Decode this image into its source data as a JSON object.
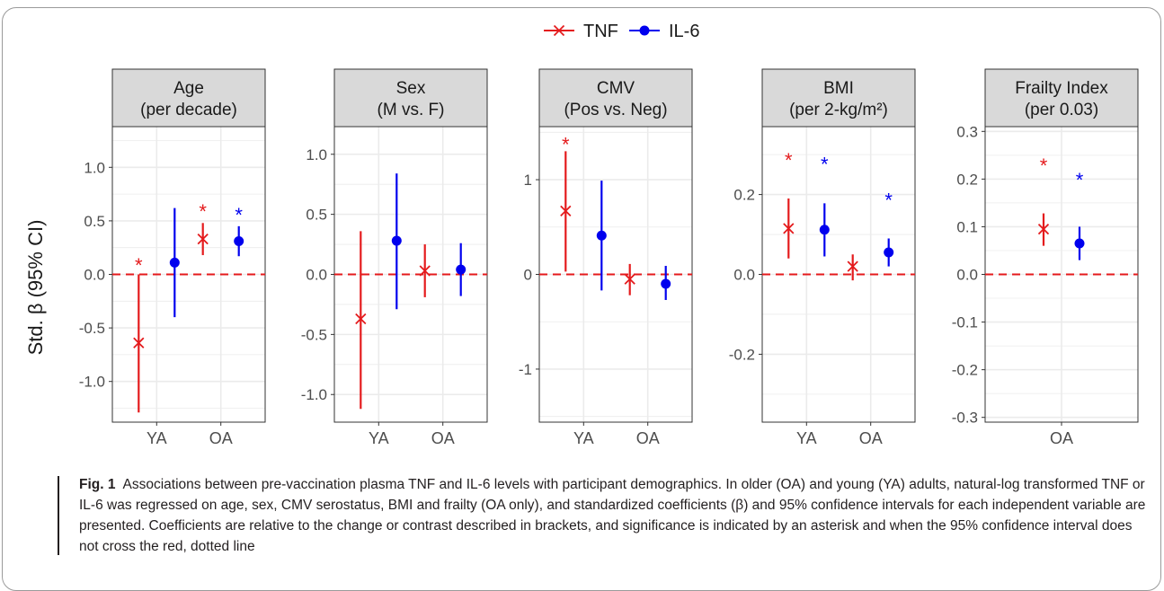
{
  "legend": {
    "items": [
      {
        "name": "TNF",
        "color": "#e41a1c",
        "marker": "x"
      },
      {
        "name": "IL-6",
        "color": "#0000ee",
        "marker": "circle"
      }
    ]
  },
  "y_axis_title": "Std. β (95% CI)",
  "caption": {
    "label": "Fig. 1",
    "text": "Associations between pre-vaccination plasma TNF and IL-6 levels with participant demographics. In older (OA) and young (YA) adults, natural-log transformed TNF or IL-6 was regressed on age, sex, CMV serostatus, BMI and frailty (OA only), and standardized coefficients (β) and 95% confidence intervals for each independent variable are presented. Coefficients are relative to the change or contrast described in brackets, and significance is indicated by an asterisk and when the 95% confidence interval does not cross the red, dotted line"
  },
  "colors": {
    "tnf": "#e41a1c",
    "il6": "#0000ee",
    "strip": "#d9d9d9",
    "grid": "#ebebeb",
    "refline": "#e41a1c"
  },
  "chart_data": [
    {
      "type": "scatter",
      "title": "Age\n(per decade)",
      "categories": [
        "YA",
        "OA"
      ],
      "ylim": [
        -1.38,
        1.38
      ],
      "yticks": [
        -1.0,
        -0.5,
        0.0,
        0.5,
        1.0
      ],
      "ytick_labels": [
        "-1.0",
        "-0.5",
        "0.0",
        "0.5",
        "1.0"
      ],
      "series": [
        {
          "name": "TNF",
          "points": [
            {
              "x": "YA",
              "est": -0.64,
              "lo": -1.29,
              "hi": 0.0,
              "sig": true,
              "star_y": 0.14
            },
            {
              "x": "OA",
              "est": 0.33,
              "lo": 0.18,
              "hi": 0.48,
              "sig": true,
              "star_y": 0.64
            }
          ]
        },
        {
          "name": "IL-6",
          "points": [
            {
              "x": "YA",
              "est": 0.11,
              "lo": -0.4,
              "hi": 0.62,
              "sig": false
            },
            {
              "x": "OA",
              "est": 0.31,
              "lo": 0.17,
              "hi": 0.45,
              "sig": true,
              "star_y": 0.61
            }
          ]
        }
      ]
    },
    {
      "type": "scatter",
      "title": "Sex\n(M vs. F)",
      "categories": [
        "YA",
        "OA"
      ],
      "ylim": [
        -1.23,
        1.23
      ],
      "yticks": [
        -1.0,
        -0.5,
        0.0,
        0.5,
        1.0
      ],
      "ytick_labels": [
        "-1.0",
        "-0.5",
        "0.0",
        "0.5",
        "1.0"
      ],
      "series": [
        {
          "name": "TNF",
          "points": [
            {
              "x": "YA",
              "est": -0.37,
              "lo": -1.12,
              "hi": 0.36,
              "sig": false
            },
            {
              "x": "OA",
              "est": 0.03,
              "lo": -0.19,
              "hi": 0.25,
              "sig": false
            }
          ]
        },
        {
          "name": "IL-6",
          "points": [
            {
              "x": "YA",
              "est": 0.28,
              "lo": -0.29,
              "hi": 0.84,
              "sig": false
            },
            {
              "x": "OA",
              "est": 0.04,
              "lo": -0.18,
              "hi": 0.26,
              "sig": false
            }
          ]
        }
      ]
    },
    {
      "type": "scatter",
      "title": "CMV\n(Pos vs. Neg)",
      "categories": [
        "YA",
        "OA"
      ],
      "ylim": [
        -1.56,
        1.56
      ],
      "yticks": [
        -1,
        0,
        1
      ],
      "ytick_labels": [
        "-1",
        "0",
        "1"
      ],
      "series": [
        {
          "name": "TNF",
          "points": [
            {
              "x": "YA",
              "est": 0.67,
              "lo": 0.03,
              "hi": 1.3,
              "sig": true,
              "star_y": 1.43
            },
            {
              "x": "OA",
              "est": -0.05,
              "lo": -0.22,
              "hi": 0.11,
              "sig": false
            }
          ]
        },
        {
          "name": "IL-6",
          "points": [
            {
              "x": "YA",
              "est": 0.41,
              "lo": -0.17,
              "hi": 0.99,
              "sig": false
            },
            {
              "x": "OA",
              "est": -0.1,
              "lo": -0.27,
              "hi": 0.09,
              "sig": false
            }
          ]
        }
      ]
    },
    {
      "type": "scatter",
      "title": "BMI\n(per 2-kg/m²)",
      "categories": [
        "YA",
        "OA"
      ],
      "ylim": [
        -0.37,
        0.37
      ],
      "yticks": [
        -0.2,
        0.0,
        0.2
      ],
      "ytick_labels": [
        "-0.2",
        "0.0",
        "0.2"
      ],
      "series": [
        {
          "name": "TNF",
          "points": [
            {
              "x": "YA",
              "est": 0.115,
              "lo": 0.04,
              "hi": 0.19,
              "sig": true,
              "star_y": 0.3
            },
            {
              "x": "OA",
              "est": 0.02,
              "lo": -0.015,
              "hi": 0.05,
              "sig": false
            }
          ]
        },
        {
          "name": "IL-6",
          "points": [
            {
              "x": "YA",
              "est": 0.112,
              "lo": 0.045,
              "hi": 0.178,
              "sig": true,
              "star_y": 0.29
            },
            {
              "x": "OA",
              "est": 0.055,
              "lo": 0.02,
              "hi": 0.09,
              "sig": true,
              "star_y": 0.2
            }
          ]
        }
      ]
    },
    {
      "type": "scatter",
      "title": "Frailty Index\n(per 0.03)",
      "categories": [
        "OA"
      ],
      "ylim": [
        -0.31,
        0.31
      ],
      "yticks": [
        -0.3,
        -0.2,
        -0.1,
        0.0,
        0.1,
        0.2,
        0.3
      ],
      "ytick_labels": [
        "-0.3",
        "-0.2",
        "-0.1",
        "0.0",
        "0.1",
        "0.2",
        "0.3"
      ],
      "series": [
        {
          "name": "TNF",
          "points": [
            {
              "x": "OA",
              "est": 0.095,
              "lo": 0.06,
              "hi": 0.128,
              "sig": true,
              "star_y": 0.24
            }
          ]
        },
        {
          "name": "IL-6",
          "points": [
            {
              "x": "OA",
              "est": 0.065,
              "lo": 0.03,
              "hi": 0.1,
              "sig": true,
              "star_y": 0.21
            }
          ]
        }
      ]
    }
  ]
}
